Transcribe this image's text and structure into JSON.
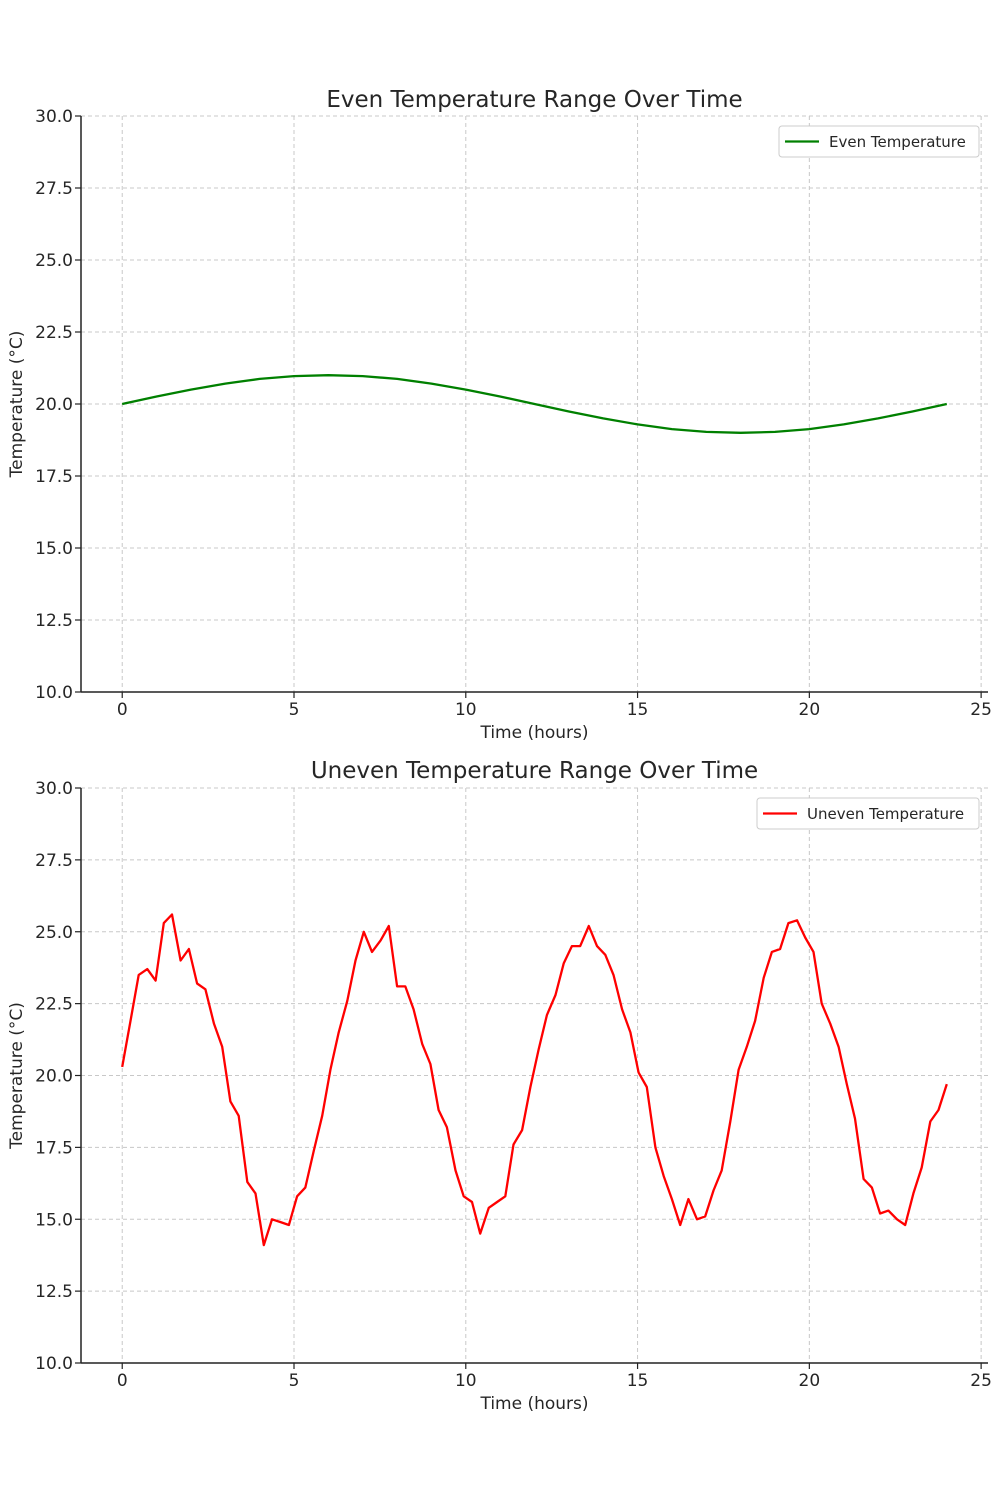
{
  "chart_data": [
    {
      "type": "line",
      "title": "Even Temperature Range Over Time",
      "xlabel": "Time (hours)",
      "ylabel": "Temperature (°C)",
      "xlim": [
        -1.2,
        25.2
      ],
      "ylim": [
        10.0,
        30.0
      ],
      "x_ticks": [
        "0",
        "5",
        "10",
        "15",
        "20",
        "25"
      ],
      "y_ticks": [
        "10.0",
        "12.5",
        "15.0",
        "17.5",
        "20.0",
        "22.5",
        "25.0",
        "27.5",
        "30.0"
      ],
      "grid": true,
      "legend_position": "top-right",
      "series": [
        {
          "name": "Even Temperature",
          "color": "#008000",
          "x": [
            0,
            1,
            2,
            3,
            4,
            5,
            6,
            7,
            8,
            9,
            10,
            11,
            12,
            13,
            14,
            15,
            16,
            17,
            18,
            19,
            20,
            21,
            22,
            23,
            24
          ],
          "values": [
            20.0,
            20.26,
            20.5,
            20.71,
            20.87,
            20.97,
            21.0,
            20.97,
            20.87,
            20.71,
            20.5,
            20.26,
            20.0,
            19.74,
            19.5,
            19.29,
            19.13,
            19.03,
            19.0,
            19.03,
            19.13,
            19.29,
            19.5,
            19.74,
            20.0
          ]
        }
      ]
    },
    {
      "type": "line",
      "title": "Uneven Temperature Range Over Time",
      "xlabel": "Time (hours)",
      "ylabel": "Temperature (°C)",
      "xlim": [
        -1.2,
        25.2
      ],
      "ylim": [
        10.0,
        30.0
      ],
      "x_ticks": [
        "0",
        "5",
        "10",
        "15",
        "20",
        "25"
      ],
      "y_ticks": [
        "10.0",
        "12.5",
        "15.0",
        "17.5",
        "20.0",
        "22.5",
        "25.0",
        "27.5",
        "30.0"
      ],
      "grid": true,
      "legend_position": "top-right",
      "series": [
        {
          "name": "Uneven Temperature",
          "color": "#ff0000",
          "x": [
            0,
            0.24,
            0.48,
            0.73,
            0.97,
            1.21,
            1.45,
            1.7,
            1.94,
            2.18,
            2.42,
            2.67,
            2.91,
            3.15,
            3.39,
            3.64,
            3.88,
            4.12,
            4.36,
            4.61,
            4.85,
            5.09,
            5.33,
            5.58,
            5.82,
            6.06,
            6.3,
            6.55,
            6.79,
            7.03,
            7.27,
            7.52,
            7.76,
            8.0,
            8.24,
            8.48,
            8.73,
            8.97,
            9.21,
            9.45,
            9.7,
            9.94,
            10.18,
            10.42,
            10.67,
            10.91,
            11.15,
            11.39,
            11.64,
            11.88,
            12.12,
            12.36,
            12.61,
            12.85,
            13.09,
            13.33,
            13.58,
            13.82,
            14.06,
            14.3,
            14.55,
            14.79,
            15.03,
            15.27,
            15.52,
            15.76,
            16.0,
            16.24,
            16.48,
            16.73,
            16.97,
            17.21,
            17.45,
            17.7,
            17.94,
            18.18,
            18.42,
            18.67,
            18.91,
            19.15,
            19.39,
            19.64,
            19.88,
            20.12,
            20.36,
            20.61,
            20.85,
            21.09,
            21.33,
            21.58,
            21.82,
            22.06,
            22.3,
            22.55,
            22.79,
            23.03,
            23.27,
            23.52,
            23.76,
            24.0
          ],
          "values": [
            20.3,
            21.9,
            23.5,
            23.7,
            23.3,
            25.3,
            25.6,
            24.0,
            24.4,
            23.2,
            23.0,
            21.8,
            21.0,
            19.1,
            18.6,
            16.3,
            15.9,
            14.1,
            15.0,
            14.9,
            14.8,
            15.8,
            16.1,
            17.4,
            18.6,
            20.2,
            21.5,
            22.6,
            24.0,
            25.0,
            24.3,
            24.7,
            25.2,
            23.1,
            23.1,
            22.3,
            21.1,
            20.4,
            18.8,
            18.2,
            16.7,
            15.8,
            15.6,
            14.5,
            15.4,
            15.6,
            15.8,
            17.6,
            18.1,
            19.6,
            20.9,
            22.1,
            22.8,
            23.9,
            24.5,
            24.5,
            25.2,
            24.5,
            24.2,
            23.5,
            22.3,
            21.5,
            20.1,
            19.6,
            17.5,
            16.5,
            15.7,
            14.8,
            15.7,
            15.0,
            15.1,
            16.0,
            16.7,
            18.4,
            20.2,
            21.0,
            21.9,
            23.4,
            24.3,
            24.4,
            25.3,
            25.4,
            24.8,
            24.3,
            22.5,
            21.8,
            21.0,
            19.7,
            18.5,
            16.4,
            16.1,
            15.2,
            15.3,
            15.0,
            14.8,
            15.9,
            16.8,
            18.4,
            18.8,
            19.7
          ]
        }
      ]
    }
  ]
}
